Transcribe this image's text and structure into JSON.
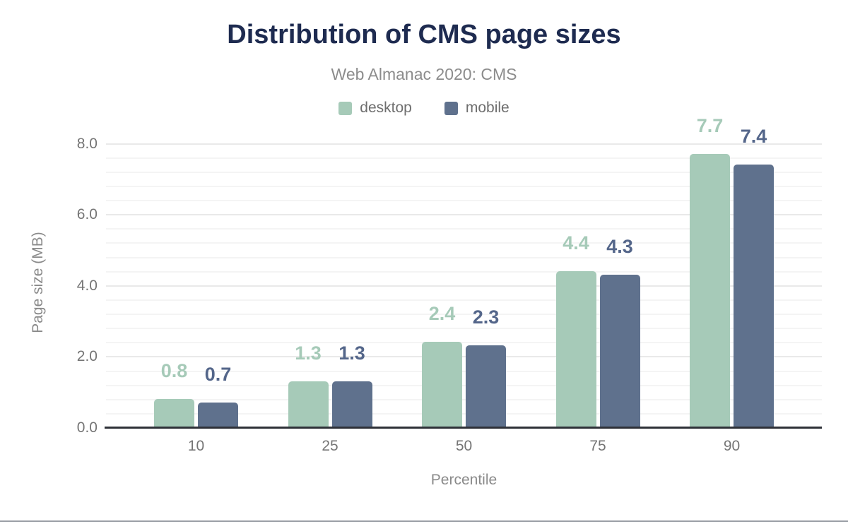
{
  "header": {
    "title": "Distribution of CMS page sizes",
    "subtitle": "Web Almanac 2020: CMS"
  },
  "legend": [
    {
      "label": "desktop",
      "color": "#a6cab8"
    },
    {
      "label": "mobile",
      "color": "#5f718d"
    }
  ],
  "chart_data": {
    "type": "bar",
    "title": "Distribution of CMS page sizes",
    "subtitle": "Web Almanac 2020: CMS",
    "categories": [
      "10",
      "25",
      "50",
      "75",
      "90"
    ],
    "series": [
      {
        "name": "desktop",
        "color": "#a6cab8",
        "label_color": "#a6cab8",
        "values": [
          0.8,
          1.3,
          2.4,
          4.4,
          7.7
        ],
        "value_labels": [
          "0.8",
          "1.3",
          "2.4",
          "4.4",
          "7.7"
        ]
      },
      {
        "name": "mobile",
        "color": "#5f718d",
        "label_color": "#54668a",
        "values": [
          0.7,
          1.3,
          2.3,
          4.3,
          7.4
        ],
        "value_labels": [
          "0.7",
          "1.3",
          "2.3",
          "4.3",
          "7.4"
        ]
      }
    ],
    "xlabel": "Percentile",
    "ylabel": "Page size (MB)",
    "y_ticks": [
      0,
      2,
      4,
      6,
      8
    ],
    "y_tick_labels": [
      "0.0",
      "2.0",
      "4.0",
      "6.0",
      "8.0"
    ],
    "ylim": [
      0,
      8.4
    ],
    "minor_grid_step": 0.4,
    "major_grid_step": 2.0,
    "grid": "on",
    "legend_position": "top",
    "bar_corner_radius": "rounded-top"
  },
  "colors": {
    "title_text": "#1e2b50",
    "subtitle_text": "#8c8c8c",
    "legend_text": "#6e6e6e",
    "tick_text": "#757575",
    "axis_title_text": "#8a8a8a",
    "baseline": "#2e3138",
    "major_gridline": "#e9e9e9",
    "minor_gridline": "#f4f4f4",
    "bottom_divider": "#9ba0a7",
    "background": "#ffffff"
  }
}
